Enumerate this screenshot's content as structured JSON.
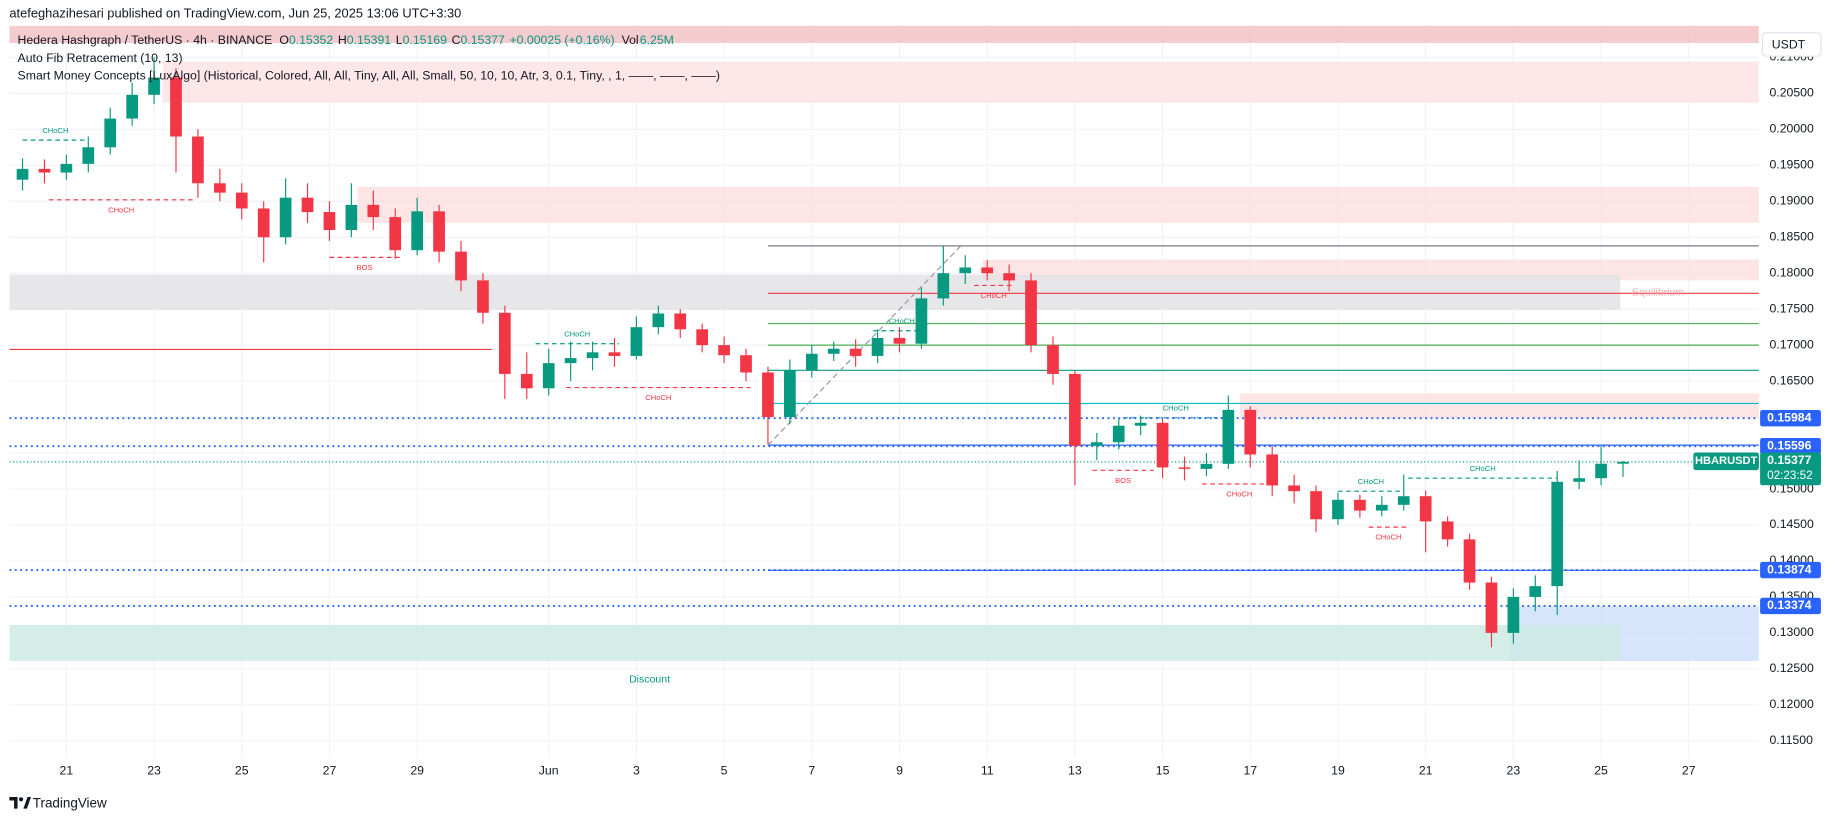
{
  "chart_data": {
    "type": "candlestick",
    "attribution": "atefeghazihesari published on TradingView.com, Jun 25, 2025 13:06 UTC+3:30",
    "symbol_title": "Hedera Hashgraph / TetherUS · 4h · BINANCE",
    "ohlc_labels": [
      "O",
      "H",
      "L",
      "C"
    ],
    "change": "+0.00025 (+0.16%)",
    "volume_label": "Vol",
    "volume": "6.25M",
    "indicators": [
      "Auto Fib Retracement (10, 13)",
      "Smart Money Concepts [LuxAlgo] (Historical, Colored, All, All, Tiny, All, All, Small, 50, 10, 10, Atr, 3, 0.1, Tiny, , 1, ——, ——, ——)"
    ],
    "currency": "USDT",
    "symbol": "HBARUSDT",
    "countdown": "02:23:52",
    "footer": "TradingView",
    "up_color": "#089981",
    "down_color": "#f23645",
    "grid": true,
    "xlim": [
      19.7,
      59.6
    ],
    "ylim": [
      0.11256,
      0.2144
    ],
    "xticks": [
      21,
      23,
      25,
      27,
      29,
      {
        "value": 32,
        "label": "Jun"
      },
      {
        "value": 34,
        "label": "3"
      },
      {
        "value": 36,
        "label": "5"
      },
      {
        "value": 38,
        "label": "7"
      },
      {
        "value": 40,
        "label": "9"
      },
      {
        "value": 42,
        "label": "11"
      },
      {
        "value": 44,
        "label": "13"
      },
      {
        "value": 46,
        "label": "15"
      },
      {
        "value": 48,
        "label": "17"
      },
      {
        "value": 50,
        "label": "19"
      },
      {
        "value": 52,
        "label": "21"
      },
      {
        "value": 54,
        "label": "23"
      },
      {
        "value": 56,
        "label": "25"
      },
      {
        "value": 58,
        "label": "27"
      }
    ],
    "yticks": [
      {
        "value": 0.115,
        "label": "0.11500"
      },
      {
        "value": 0.12,
        "label": "0.12000"
      },
      {
        "value": 0.125,
        "label": "0.12500"
      },
      {
        "value": 0.13,
        "label": "0.13000"
      },
      {
        "value": 0.135,
        "label": "0.13500"
      },
      {
        "value": 0.14,
        "label": "0.14000"
      },
      {
        "value": 0.145,
        "label": "0.14500"
      },
      {
        "value": 0.15,
        "label": "0.15000"
      },
      {
        "value": 0.155,
        "label": "0.15500"
      },
      {
        "value": 0.16,
        "label": "0.16000"
      },
      {
        "value": 0.165,
        "label": "0.16500"
      },
      {
        "value": 0.17,
        "label": "0.17000"
      },
      {
        "value": 0.175,
        "label": "0.17500"
      },
      {
        "value": 0.18,
        "label": "0.18000"
      },
      {
        "value": 0.185,
        "label": "0.18500"
      },
      {
        "value": 0.19,
        "label": "0.19000"
      },
      {
        "value": 0.195,
        "label": "0.19500"
      },
      {
        "value": 0.2,
        "label": "0.20000"
      },
      {
        "value": 0.205,
        "label": "0.20500"
      },
      {
        "value": 0.21,
        "label": "0.21000"
      }
    ],
    "x": [
      20.0,
      20.5,
      21.0,
      21.5,
      22.0,
      22.5,
      23.0,
      23.5,
      24.0,
      24.5,
      25.0,
      25.5,
      26.0,
      26.5,
      27.0,
      27.5,
      28.0,
      28.5,
      29.0,
      29.5,
      30.0,
      30.5,
      31.0,
      31.5,
      32.0,
      32.5,
      33.0,
      33.5,
      34.0,
      34.5,
      35.0,
      35.5,
      36.0,
      36.5,
      37.0,
      37.5,
      38.0,
      38.5,
      39.0,
      39.5,
      40.0,
      40.5,
      41.0,
      41.5,
      42.0,
      42.5,
      43.0,
      43.5,
      44.0,
      44.5,
      45.0,
      45.5,
      46.0,
      46.5,
      47.0,
      47.5,
      48.0,
      48.5,
      49.0,
      49.5,
      50.0,
      50.5,
      51.0,
      51.5,
      52.0,
      52.5,
      53.0,
      53.5,
      54.0,
      54.5,
      55.0,
      55.5,
      56.0,
      56.5
    ],
    "open": [
      0.193,
      0.1945,
      0.194,
      0.1952,
      0.1975,
      0.2015,
      0.2048,
      0.2072,
      0.199,
      0.1925,
      0.1912,
      0.189,
      0.185,
      0.1905,
      0.1885,
      0.186,
      0.1895,
      0.1878,
      0.1832,
      0.1886,
      0.183,
      0.179,
      0.1745,
      0.166,
      0.164,
      0.1675,
      0.1682,
      0.169,
      0.1685,
      0.1725,
      0.1744,
      0.1722,
      0.17,
      0.1686,
      0.1662,
      0.16,
      0.1665,
      0.1688,
      0.1695,
      0.1685,
      0.171,
      0.1702,
      0.1765,
      0.18,
      0.1808,
      0.18,
      0.179,
      0.17,
      0.166,
      0.156,
      0.1565,
      0.1588,
      0.1592,
      0.153,
      0.1528,
      0.1535,
      0.161,
      0.1548,
      0.1505,
      0.1497,
      0.1458,
      0.1485,
      0.147,
      0.1478,
      0.149,
      0.1455,
      0.143,
      0.137,
      0.13,
      0.135,
      0.1365,
      0.151,
      0.1515,
      0.15352
    ],
    "high": [
      0.196,
      0.1958,
      0.1965,
      0.199,
      0.203,
      0.2065,
      0.21,
      0.2085,
      0.2,
      0.1945,
      0.1925,
      0.19,
      0.1932,
      0.1925,
      0.19,
      0.1925,
      0.1915,
      0.189,
      0.1905,
      0.1895,
      0.1845,
      0.18,
      0.1755,
      0.169,
      0.1695,
      0.1705,
      0.1705,
      0.171,
      0.174,
      0.1755,
      0.175,
      0.173,
      0.1712,
      0.1695,
      0.167,
      0.168,
      0.17,
      0.1705,
      0.1708,
      0.1722,
      0.1725,
      0.178,
      0.1838,
      0.1825,
      0.1818,
      0.1812,
      0.18,
      0.1712,
      0.1665,
      0.1578,
      0.1598,
      0.1602,
      0.1598,
      0.1545,
      0.155,
      0.163,
      0.1615,
      0.156,
      0.152,
      0.1505,
      0.1495,
      0.1492,
      0.149,
      0.152,
      0.1498,
      0.1462,
      0.1438,
      0.1378,
      0.1362,
      0.138,
      0.1525,
      0.154,
      0.156,
      0.15391
    ],
    "low": [
      0.1915,
      0.1925,
      0.193,
      0.194,
      0.1965,
      0.2005,
      0.2035,
      0.194,
      0.1905,
      0.19,
      0.1875,
      0.1815,
      0.184,
      0.187,
      0.1845,
      0.185,
      0.186,
      0.182,
      0.1825,
      0.1815,
      0.1775,
      0.173,
      0.1625,
      0.1625,
      0.163,
      0.165,
      0.1665,
      0.167,
      0.168,
      0.1715,
      0.171,
      0.169,
      0.1675,
      0.165,
      0.1562,
      0.159,
      0.1655,
      0.1678,
      0.167,
      0.1675,
      0.169,
      0.1695,
      0.1755,
      0.1785,
      0.179,
      0.1775,
      0.169,
      0.1645,
      0.1505,
      0.154,
      0.1555,
      0.1575,
      0.1515,
      0.1512,
      0.1518,
      0.1528,
      0.153,
      0.149,
      0.148,
      0.144,
      0.145,
      0.146,
      0.1462,
      0.147,
      0.1412,
      0.142,
      0.136,
      0.128,
      0.1285,
      0.133,
      0.1325,
      0.15,
      0.1505,
      0.15169
    ],
    "close": [
      0.1945,
      0.194,
      0.1952,
      0.1975,
      0.2015,
      0.2048,
      0.2072,
      0.199,
      0.1925,
      0.1912,
      0.189,
      0.185,
      0.1905,
      0.1885,
      0.186,
      0.1895,
      0.1878,
      0.1832,
      0.1886,
      0.183,
      0.179,
      0.1745,
      0.166,
      0.164,
      0.1675,
      0.1682,
      0.169,
      0.1685,
      0.1725,
      0.1744,
      0.1722,
      0.17,
      0.1686,
      0.1662,
      0.16,
      0.1665,
      0.1688,
      0.1695,
      0.1685,
      0.171,
      0.1702,
      0.1765,
      0.18,
      0.1808,
      0.18,
      0.179,
      0.17,
      0.166,
      0.156,
      0.1565,
      0.1588,
      0.1592,
      0.153,
      0.1528,
      0.1535,
      0.161,
      0.1548,
      0.1505,
      0.1497,
      0.1458,
      0.1485,
      0.147,
      0.1478,
      0.149,
      0.1455,
      0.143,
      0.137,
      0.13,
      0.135,
      0.1365,
      0.151,
      0.1515,
      0.15352,
      0.15377
    ],
    "zones": [
      {
        "x": [
          19.7,
          59.6
        ],
        "y": [
          0.212,
          0.2144
        ],
        "color": "#f2c2c5"
      },
      {
        "x": [
          23.2,
          59.6
        ],
        "y": [
          0.2037,
          0.2094
        ],
        "color": "#fde3e4"
      },
      {
        "x": [
          27.64,
          59.6
        ],
        "y": [
          0.187,
          0.192
        ],
        "color": "#fde0e1"
      },
      {
        "x": [
          41.9,
          59.6
        ],
        "y": [
          0.179,
          0.1819
        ],
        "color": "#fde0e1"
      },
      {
        "x": [
          19.7,
          56.44
        ],
        "y": [
          0.1749,
          0.1798
        ],
        "color": "#e3e3e5"
      },
      {
        "x": [
          47.77,
          59.6
        ],
        "y": [
          0.1598,
          0.1633
        ],
        "color": "#fde0e1"
      },
      {
        "x": [
          53.9,
          59.6
        ],
        "y": [
          0.1261,
          0.1337
        ],
        "color": "#cfe0fc"
      },
      {
        "x": [
          19.7,
          56.44
        ],
        "y": [
          0.1261,
          0.1311
        ],
        "color": "#cdeae3"
      }
    ],
    "zone_labels": [
      {
        "text": "Equilibrium",
        "x": 57.3,
        "y": 0.1773,
        "color": "#f3a6ab"
      },
      {
        "text": "Discount",
        "x": 34.3,
        "y": 0.1235,
        "color": "#089981"
      }
    ],
    "fib_start": 37.0,
    "fib_levels": [
      {
        "value": 0.1838,
        "color": "#787b86"
      },
      {
        "value": 0.1772,
        "color": "#f23645"
      },
      {
        "value": 0.173,
        "color": "#4caf50"
      },
      {
        "value": 0.17,
        "color": "#4caf50"
      },
      {
        "value": 0.1665,
        "color": "#089981"
      },
      {
        "value": 0.1619,
        "color": "#00bcd4"
      },
      {
        "value": 0.1561,
        "color": "#2962ff"
      },
      {
        "value": 0.1387,
        "color": "#2962ff"
      }
    ],
    "trend_line": {
      "x": [
        37.0,
        41.4
      ],
      "y": [
        0.1561,
        0.1838
      ],
      "color": "#9598a1"
    },
    "level_lines": [
      {
        "x": [
          19.7,
          30.7
        ],
        "value": 0.1694,
        "color": "#f23645"
      }
    ],
    "structure": [
      {
        "label": "CHoCH",
        "x": [
          20.0,
          21.5
        ],
        "value": 0.1985,
        "color": "#089981"
      },
      {
        "label": "CHoCH",
        "x": [
          20.6,
          23.9
        ],
        "value": 0.1902,
        "color": "#f23645"
      },
      {
        "label": "BOS",
        "x": [
          27.0,
          28.6
        ],
        "value": 0.1822,
        "color": "#f23645"
      },
      {
        "label": "CHoCH",
        "x": [
          31.7,
          33.6
        ],
        "value": 0.1702,
        "color": "#089981"
      },
      {
        "label": "CHoCH",
        "x": [
          32.4,
          36.6
        ],
        "value": 0.1641,
        "color": "#f23645"
      },
      {
        "label": "CHoCH",
        "x": [
          39.4,
          40.7
        ],
        "value": 0.172,
        "color": "#089981"
      },
      {
        "label": "CHoCH",
        "x": [
          41.7,
          42.6
        ],
        "value": 0.1783,
        "color": "#f23645"
      },
      {
        "label": "CHoCH",
        "x": [
          45.1,
          47.5
        ],
        "value": 0.1599,
        "color": "#089981"
      },
      {
        "label": "BOS",
        "x": [
          44.4,
          45.8
        ],
        "value": 0.1526,
        "color": "#f23645"
      },
      {
        "label": "CHoCH",
        "x": [
          46.9,
          48.6
        ],
        "value": 0.1507,
        "color": "#f23645"
      },
      {
        "label": "CHoCH",
        "x": [
          50.0,
          51.5
        ],
        "value": 0.1497,
        "color": "#089981"
      },
      {
        "label": "CHoCH",
        "x": [
          50.7,
          51.6
        ],
        "value": 0.1447,
        "color": "#f23645"
      },
      {
        "label": "CHoCH",
        "x": [
          51.6,
          55.0
        ],
        "value": 0.1515,
        "color": "#089981"
      }
    ],
    "price_levels": [
      0.15984,
      0.15596,
      0.13874,
      0.13374
    ],
    "price_level_color": "#2962ff"
  }
}
